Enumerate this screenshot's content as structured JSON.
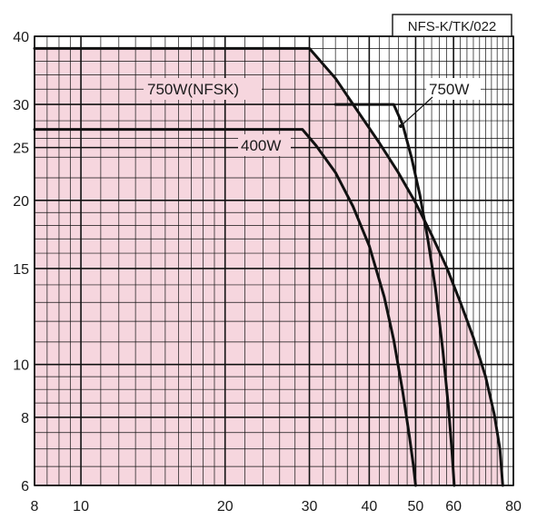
{
  "chart_data": {
    "type": "line",
    "x_scale": "log",
    "y_scale": "log",
    "xlim": [
      8,
      80
    ],
    "ylim": [
      6,
      40
    ],
    "grid": true,
    "shaded_region_color": "#f6d6de",
    "line_color": "#111111",
    "grid_color": "#111111",
    "x_ticks": [
      8,
      10,
      20,
      30,
      40,
      50,
      60,
      80
    ],
    "y_ticks": [
      6,
      8,
      10,
      15,
      20,
      25,
      30,
      40
    ],
    "x_tick_labels": [
      "8",
      "10",
      "20",
      "30",
      "40",
      "50",
      "60",
      "80"
    ],
    "y_tick_labels": [
      "6",
      "8",
      "10",
      "15",
      "20",
      "25",
      "30",
      "40"
    ],
    "code_label": "NFS-K/TK/022",
    "series": [
      {
        "name": "750W(NFSK)",
        "x": [
          8,
          30,
          34,
          38,
          42,
          46,
          50,
          54,
          58,
          62,
          66,
          70,
          73,
          75,
          76
        ],
        "y": [
          38,
          38,
          33.5,
          29,
          25.5,
          22.5,
          19.8,
          17.3,
          15.1,
          13,
          11.2,
          9.5,
          8.1,
          7,
          6
        ]
      },
      {
        "name": "750W",
        "x": [
          34,
          45,
          47,
          49,
          51,
          53,
          55,
          57,
          58.5,
          59.5,
          60.2
        ],
        "y": [
          30,
          30,
          27.5,
          24,
          20.5,
          17,
          13.8,
          10.6,
          8.4,
          7,
          6
        ]
      },
      {
        "name": "400W",
        "x": [
          8,
          29,
          31,
          34,
          37,
          40,
          43,
          45,
          47,
          48.5,
          49.5,
          50
        ],
        "y": [
          27,
          27,
          25.2,
          22.5,
          19.5,
          16.5,
          13.3,
          11.1,
          8.9,
          7.4,
          6.5,
          6
        ]
      }
    ],
    "series_labels": [
      "750W(NFSK)",
      "750W",
      "400W"
    ]
  }
}
